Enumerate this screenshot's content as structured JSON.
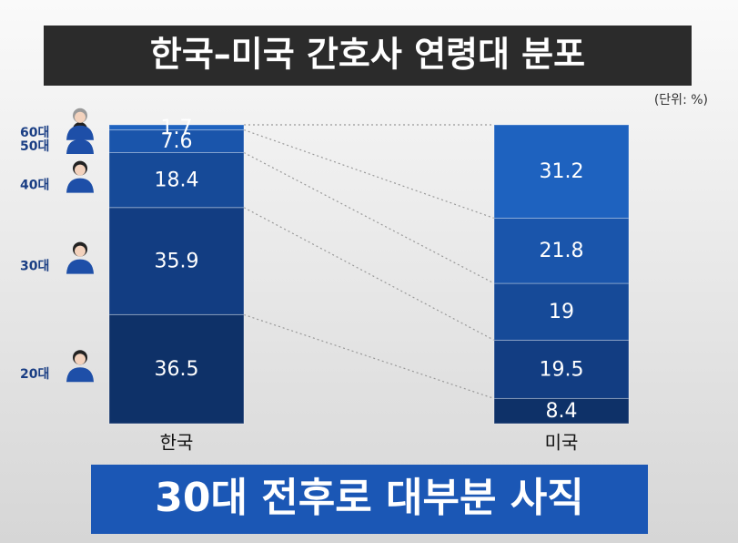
{
  "chart_data": {
    "type": "stacked-bar",
    "title": "한국–미국 간호사 연령대 분포",
    "unit": "(단위: %)",
    "caption": "30대 전후로 대부분 사직",
    "categories": [
      "한국",
      "미국"
    ],
    "series": [
      {
        "name": "20대",
        "color": "#0e3168",
        "values": [
          36.5,
          8.4
        ]
      },
      {
        "name": "30대",
        "color": "#123d82",
        "values": [
          35.9,
          19.5
        ]
      },
      {
        "name": "40대",
        "color": "#164a98",
        "values": [
          18.4,
          19
        ]
      },
      {
        "name": "50대",
        "color": "#1a55ab",
        "values": [
          7.6,
          21.8
        ]
      },
      {
        "name": "60대",
        "color": "#1e62bf",
        "values": [
          1.7,
          31.2
        ]
      }
    ]
  }
}
